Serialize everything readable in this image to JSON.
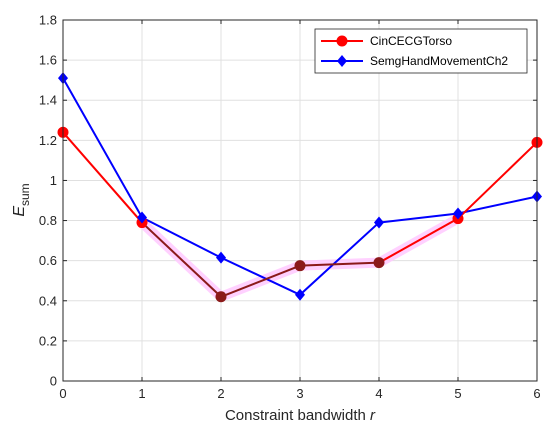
{
  "chart_data": {
    "type": "line",
    "xlabel": {
      "main": "Constraint bandwidth",
      "var": "r"
    },
    "ylabel": {
      "main": "E",
      "sub": "sum"
    },
    "x": [
      0,
      1,
      2,
      3,
      4,
      5,
      6
    ],
    "xlim": [
      0,
      6
    ],
    "ylim": [
      0,
      1.8
    ],
    "xticks": [
      "0",
      "1",
      "2",
      "3",
      "4",
      "5",
      "6"
    ],
    "yticks": [
      "0",
      "0.2",
      "0.4",
      "0.6",
      "0.8",
      "1",
      "1.2",
      "1.4",
      "1.6",
      "1.8"
    ],
    "grid": true,
    "legend_position": "top-right",
    "series": [
      {
        "name": "CinCECGTorso",
        "color": "#ff0000",
        "marker": "circle",
        "values": [
          1.24,
          0.79,
          0.42,
          0.575,
          0.59,
          0.81,
          1.19
        ]
      },
      {
        "name": "SemgHandMovementCh2",
        "color": "#0000ff",
        "marker": "diamond",
        "values": [
          1.51,
          0.815,
          0.615,
          0.43,
          0.79,
          0.835,
          0.92
        ]
      }
    ],
    "overlap_color": "#8b1a1a",
    "highlight_color": "#ffccff"
  }
}
